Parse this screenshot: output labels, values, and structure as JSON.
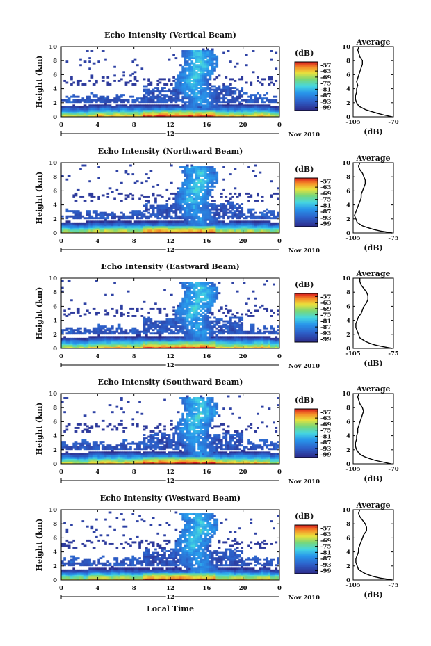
{
  "figure": {
    "xlabel": "Local Time",
    "date_label": "Nov 2010",
    "ylabel": "Height (km)",
    "colorbar_unit": "(dB)",
    "colorbar_ticks": [
      "-57",
      "-63",
      "-69",
      "-75",
      "-81",
      "-87",
      "-93",
      "-99"
    ],
    "x_ticks": [
      "0",
      "4",
      "8",
      "12",
      "16",
      "20",
      "0"
    ],
    "y_ticks": [
      "0",
      "2",
      "4",
      "6",
      "8",
      "10"
    ],
    "avg_title": "Average",
    "avg_xlabel": "(dB)"
  },
  "chart_data": [
    {
      "type": "heatmap",
      "title": "Echo Intensity (Vertical Beam)",
      "x_range_hours": [
        0,
        24
      ],
      "y_range_km": [
        0,
        10
      ],
      "color_range_db": [
        -99,
        -57
      ],
      "avg_profile": {
        "type": "line",
        "title": "Average",
        "xlim_labels": [
          "-105",
          "-70"
        ],
        "xlim": [
          -105,
          -70
        ],
        "height_km": [
          0,
          0.25,
          0.5,
          0.75,
          1,
          1.25,
          1.5,
          2,
          2.5,
          3,
          3.5,
          4,
          4.5,
          5,
          5.5,
          6,
          6.5,
          7,
          7.5,
          8,
          8.5,
          9,
          9.5,
          10
        ],
        "db": [
          -71,
          -78,
          -84,
          -89,
          -94,
          -97,
          -100,
          -102,
          -103,
          -103,
          -102,
          -102,
          -101,
          -102,
          -101,
          -100,
          -99,
          -98,
          -97,
          -97,
          -99,
          -100,
          -101,
          -100
        ]
      }
    },
    {
      "type": "heatmap",
      "title": "Echo Intensity (Northward Beam)",
      "x_range_hours": [
        0,
        24
      ],
      "y_range_km": [
        0,
        10
      ],
      "color_range_db": [
        -99,
        -57
      ],
      "avg_profile": {
        "type": "line",
        "title": "Average",
        "xlim_labels": [
          "-105",
          "-75"
        ],
        "xlim": [
          -105,
          -75
        ],
        "height_km": [
          0,
          0.25,
          0.5,
          0.75,
          1,
          1.25,
          1.5,
          2,
          2.5,
          3,
          3.5,
          4,
          4.5,
          5,
          5.5,
          6,
          6.5,
          7,
          7.5,
          8,
          8.5,
          9,
          9.5,
          10
        ],
        "db": [
          -76,
          -84,
          -90,
          -94,
          -98,
          -100,
          -102,
          -103,
          -104,
          -103,
          -102,
          -101,
          -100,
          -99,
          -99,
          -98,
          -97,
          -96,
          -96,
          -97,
          -98,
          -100,
          -101,
          -100
        ]
      }
    },
    {
      "type": "heatmap",
      "title": "Echo Intensity (Eastward Beam)",
      "x_range_hours": [
        0,
        24
      ],
      "y_range_km": [
        0,
        10
      ],
      "color_range_db": [
        -99,
        -57
      ],
      "avg_profile": {
        "type": "line",
        "title": "Average",
        "xlim_labels": [
          "-105",
          "-75"
        ],
        "xlim": [
          -105,
          -75
        ],
        "height_km": [
          0,
          0.25,
          0.5,
          0.75,
          1,
          1.25,
          1.5,
          2,
          2.5,
          3,
          3.5,
          4,
          4.5,
          5,
          5.5,
          6,
          6.5,
          7,
          7.5,
          8,
          8.5,
          9,
          9.5,
          10
        ],
        "db": [
          -76,
          -83,
          -89,
          -93,
          -96,
          -98,
          -100,
          -101,
          -102,
          -103,
          -103,
          -102,
          -101,
          -99,
          -98,
          -97,
          -95,
          -94,
          -94,
          -95,
          -97,
          -99,
          -100,
          -100
        ]
      }
    },
    {
      "type": "heatmap",
      "title": "Echo Intensity (Southward Beam)",
      "x_range_hours": [
        0,
        24
      ],
      "y_range_km": [
        0,
        10
      ],
      "color_range_db": [
        -99,
        -57
      ],
      "avg_profile": {
        "type": "line",
        "title": "Average",
        "xlim_labels": [
          "-105",
          "-70"
        ],
        "xlim": [
          -105,
          -70
        ],
        "height_km": [
          0,
          0.25,
          0.5,
          0.75,
          1,
          1.25,
          1.5,
          2,
          2.5,
          3,
          3.5,
          4,
          4.5,
          5,
          5.5,
          6,
          6.5,
          7,
          7.5,
          8,
          8.5,
          9,
          9.5,
          10
        ],
        "db": [
          -72,
          -79,
          -86,
          -91,
          -95,
          -98,
          -100,
          -102,
          -103,
          -103,
          -102,
          -102,
          -101,
          -101,
          -100,
          -99,
          -98,
          -97,
          -96,
          -97,
          -99,
          -100,
          -101,
          -100
        ]
      }
    },
    {
      "type": "heatmap",
      "title": "Echo Intensity (Westward Beam)",
      "x_range_hours": [
        0,
        24
      ],
      "y_range_km": [
        0,
        10
      ],
      "color_range_db": [
        -99,
        -57
      ],
      "avg_profile": {
        "type": "line",
        "title": "Average",
        "xlim_labels": [
          "-105",
          "-75"
        ],
        "xlim": [
          -105,
          -75
        ],
        "height_km": [
          0,
          0.25,
          0.5,
          0.75,
          1,
          1.25,
          1.5,
          2,
          2.5,
          3,
          3.5,
          4,
          4.5,
          5,
          5.5,
          6,
          6.5,
          7,
          7.5,
          8,
          8.5,
          9,
          9.5,
          10
        ],
        "db": [
          -76,
          -84,
          -90,
          -94,
          -97,
          -99,
          -101,
          -102,
          -103,
          -103,
          -102,
          -101,
          -101,
          -100,
          -99,
          -98,
          -97,
          -95,
          -95,
          -96,
          -98,
          -100,
          -101,
          -100
        ]
      }
    }
  ]
}
